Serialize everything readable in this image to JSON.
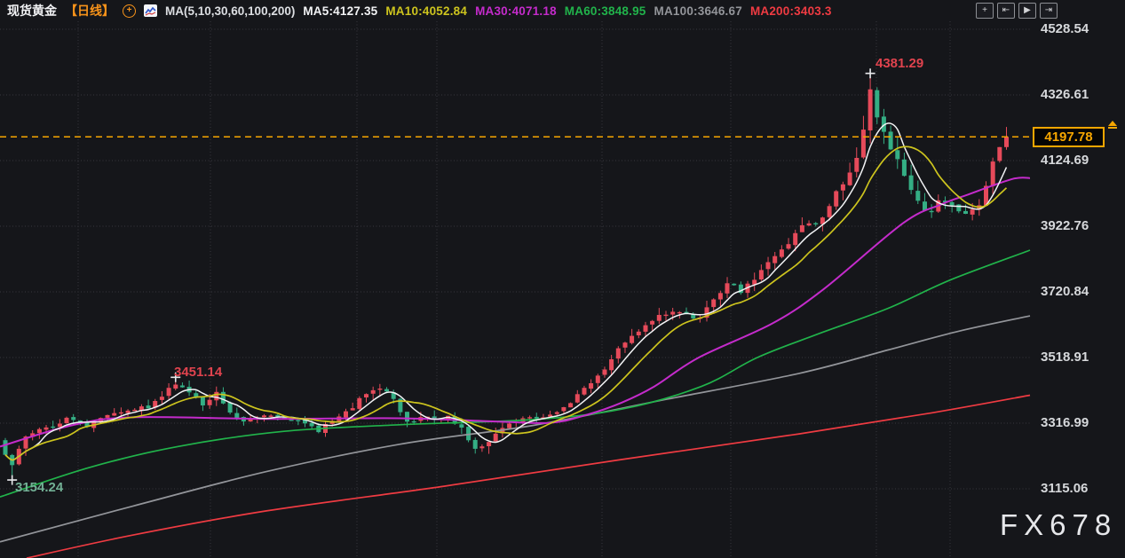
{
  "header": {
    "symbol": "现货黄金",
    "timeframe": "【日线】",
    "add_icon": "+",
    "ma_config": "MA(5,10,30,60,100,200)",
    "ma_values": [
      {
        "label": "MA5:4127.35",
        "color": "#f2f3f5"
      },
      {
        "label": "MA10:4052.84",
        "color": "#cdc41e"
      },
      {
        "label": "MA30:4071.18",
        "color": "#c42bcb"
      },
      {
        "label": "MA60:3848.95",
        "color": "#21b34b"
      },
      {
        "label": "MA100:3646.67",
        "color": "#93959a"
      },
      {
        "label": "MA200:3403.3",
        "color": "#ef3b42"
      }
    ]
  },
  "toolbar": {
    "buttons": [
      {
        "name": "move-chart",
        "glyph": "+"
      },
      {
        "name": "snap-left",
        "glyph": "⇤"
      },
      {
        "name": "auto-play",
        "glyph": "▶"
      },
      {
        "name": "snap-right",
        "glyph": "⇥"
      }
    ]
  },
  "watermark": "FX678",
  "chart_data": {
    "type": "candlestick",
    "title": "现货黄金 日线 (Spot Gold Daily)",
    "current_price": 4197.78,
    "ylim": [
      3115.06,
      4528.54
    ],
    "y_axis_ticks": [
      4528.54,
      4326.61,
      4124.69,
      3922.76,
      3720.84,
      3518.91,
      3316.99,
      3115.06
    ],
    "x_gridlines": [
      88,
      237,
      402,
      492,
      678,
      823,
      987,
      1070
    ],
    "candle_count": 148,
    "candle_up_color": "#e64a5a",
    "candle_down_color": "#34ae84",
    "close_path": [
      [
        0,
        3225
      ],
      [
        1,
        3185
      ],
      [
        3,
        3280
      ],
      [
        6,
        3300
      ],
      [
        9,
        3330
      ],
      [
        12,
        3310
      ],
      [
        15,
        3345
      ],
      [
        18,
        3352
      ],
      [
        21,
        3368
      ],
      [
        23,
        3405
      ],
      [
        25,
        3438
      ],
      [
        27,
        3405
      ],
      [
        29,
        3378
      ],
      [
        31,
        3412
      ],
      [
        33,
        3350
      ],
      [
        35,
        3322
      ],
      [
        38,
        3338
      ],
      [
        41,
        3330
      ],
      [
        44,
        3318
      ],
      [
        46,
        3292
      ],
      [
        48,
        3328
      ],
      [
        51,
        3368
      ],
      [
        53,
        3412
      ],
      [
        55,
        3425
      ],
      [
        57,
        3392
      ],
      [
        59,
        3322
      ],
      [
        62,
        3332
      ],
      [
        65,
        3342
      ],
      [
        67,
        3305
      ],
      [
        69,
        3235
      ],
      [
        71,
        3268
      ],
      [
        74,
        3320
      ],
      [
        77,
        3332
      ],
      [
        80,
        3342
      ],
      [
        82,
        3362
      ],
      [
        84,
        3402
      ],
      [
        86,
        3442
      ],
      [
        88,
        3482
      ],
      [
        90,
        3540
      ],
      [
        92,
        3582
      ],
      [
        94,
        3612
      ],
      [
        96,
        3642
      ],
      [
        98,
        3658
      ],
      [
        100,
        3650
      ],
      [
        102,
        3638
      ],
      [
        104,
        3702
      ],
      [
        106,
        3748
      ],
      [
        108,
        3722
      ],
      [
        110,
        3762
      ],
      [
        112,
        3805
      ],
      [
        114,
        3850
      ],
      [
        116,
        3895
      ],
      [
        118,
        3940
      ],
      [
        119,
        3922
      ],
      [
        121,
        3992
      ],
      [
        123,
        4062
      ],
      [
        125,
        4135
      ],
      [
        126,
        4235
      ],
      [
        127,
        4352
      ],
      [
        128,
        4258
      ],
      [
        130,
        4152
      ],
      [
        132,
        4082
      ],
      [
        134,
        3992
      ],
      [
        136,
        3962
      ],
      [
        137,
        4002
      ],
      [
        139,
        3982
      ],
      [
        141,
        3958
      ],
      [
        142,
        3978
      ],
      [
        143,
        3995
      ],
      [
        144,
        4045
      ],
      [
        145,
        4115
      ],
      [
        146,
        4172
      ],
      [
        147,
        4197.78
      ]
    ],
    "range_path": [
      [
        0,
        70
      ],
      [
        4,
        40
      ],
      [
        15,
        30
      ],
      [
        24,
        42
      ],
      [
        30,
        38
      ],
      [
        40,
        28
      ],
      [
        50,
        36
      ],
      [
        56,
        42
      ],
      [
        60,
        40
      ],
      [
        69,
        60
      ],
      [
        75,
        35
      ],
      [
        80,
        26
      ],
      [
        85,
        38
      ],
      [
        92,
        48
      ],
      [
        100,
        42
      ],
      [
        105,
        45
      ],
      [
        112,
        44
      ],
      [
        118,
        55
      ],
      [
        124,
        65
      ],
      [
        126,
        90
      ],
      [
        127,
        110
      ],
      [
        129,
        95
      ],
      [
        132,
        80
      ],
      [
        135,
        62
      ],
      [
        139,
        48
      ],
      [
        142,
        42
      ],
      [
        145,
        55
      ],
      [
        147,
        45
      ]
    ],
    "overrides": {
      "1": {
        "low": 3154.24
      },
      "25": {
        "high": 3451.14
      },
      "127": {
        "high": 4381.29
      },
      "147": {
        "close": 4197.78,
        "high": 4228
      }
    },
    "ma_short": [
      {
        "name": "MA5",
        "window": 5,
        "value": 4127.35,
        "color": "#f2f3f5"
      },
      {
        "name": "MA10",
        "window": 10,
        "value": 4052.84,
        "color": "#cdc41e"
      }
    ],
    "ma_lines": [
      {
        "name": "MA200",
        "value": 3403.3,
        "color": "#ef3b42",
        "points": [
          [
            30,
            2902
          ],
          [
            150,
            2973
          ],
          [
            300,
            3047
          ],
          [
            500,
            3123
          ],
          [
            700,
            3205
          ],
          [
            900,
            3284
          ],
          [
            1050,
            3349
          ],
          [
            1160,
            3403
          ]
        ]
      },
      {
        "name": "MA100",
        "value": 3646.67,
        "color": "#93959a",
        "points": [
          [
            0,
            2952
          ],
          [
            150,
            3062
          ],
          [
            300,
            3168
          ],
          [
            450,
            3252
          ],
          [
            600,
            3310
          ],
          [
            750,
            3390
          ],
          [
            900,
            3470
          ],
          [
            1000,
            3542
          ],
          [
            1080,
            3600
          ],
          [
            1160,
            3647
          ]
        ]
      },
      {
        "name": "MA60",
        "value": 3848.95,
        "color": "#21b34b",
        "points": [
          [
            0,
            3090
          ],
          [
            100,
            3180
          ],
          [
            200,
            3245
          ],
          [
            320,
            3292
          ],
          [
            450,
            3312
          ],
          [
            600,
            3328
          ],
          [
            700,
            3360
          ],
          [
            790,
            3430
          ],
          [
            853,
            3519
          ],
          [
            920,
            3590
          ],
          [
            1000,
            3670
          ],
          [
            1070,
            3757
          ],
          [
            1160,
            3849
          ]
        ]
      },
      {
        "name": "MA30",
        "value": 4071.18,
        "color": "#c42bcb",
        "points": [
          [
            0,
            3245
          ],
          [
            80,
            3310
          ],
          [
            150,
            3335
          ],
          [
            300,
            3330
          ],
          [
            450,
            3332
          ],
          [
            560,
            3322
          ],
          [
            620,
            3318
          ],
          [
            660,
            3342
          ],
          [
            700,
            3380
          ],
          [
            737,
            3430
          ],
          [
            787,
            3519
          ],
          [
            870,
            3624
          ],
          [
            927,
            3728
          ],
          [
            1017,
            3932
          ],
          [
            1060,
            3990
          ],
          [
            1090,
            4020
          ],
          [
            1140,
            4068
          ],
          [
            1160,
            4071
          ]
        ]
      }
    ],
    "annotations": [
      {
        "text": "4381.29",
        "color": "#e0434e",
        "label_x": 986,
        "label_y": 63,
        "marker_idx": 127,
        "marker_price": 4393
      },
      {
        "text": "3451.14",
        "color": "#e0434e",
        "label_x": 196,
        "label_y": 411,
        "marker_idx": 25,
        "marker_price": 3458
      },
      {
        "text": "3154.24",
        "color": "#72b095",
        "label_x": 17,
        "label_y": 541,
        "marker_idx": 1,
        "marker_price": 3142
      }
    ],
    "price_line_color": "#f7a600",
    "grid": true,
    "legend_position": "top"
  }
}
